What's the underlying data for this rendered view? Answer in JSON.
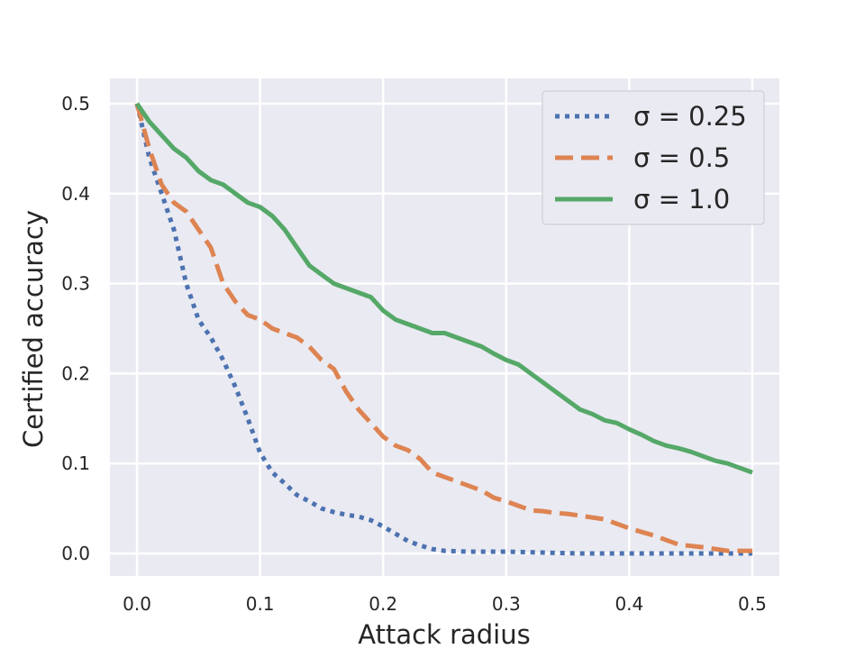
{
  "chart_data": {
    "type": "line",
    "xlabel": "Attack radius",
    "ylabel": "Certified accuracy",
    "xlim": [
      -0.022,
      0.522
    ],
    "ylim": [
      -0.025,
      0.528
    ],
    "xticks": [
      0.0,
      0.1,
      0.2,
      0.3,
      0.4,
      0.5
    ],
    "xtick_labels": [
      "0.0",
      "0.1",
      "0.2",
      "0.3",
      "0.4",
      "0.5"
    ],
    "yticks": [
      0.0,
      0.1,
      0.2,
      0.3,
      0.4,
      0.5
    ],
    "ytick_labels": [
      "0.0",
      "0.1",
      "0.2",
      "0.3",
      "0.4",
      "0.5"
    ],
    "grid": true,
    "legend_position": "top-right",
    "series": [
      {
        "name": "σ = 0.25",
        "color": "#4c72b0",
        "style": "dotted",
        "x": [
          0.0,
          0.01,
          0.02,
          0.03,
          0.04,
          0.05,
          0.06,
          0.07,
          0.08,
          0.09,
          0.1,
          0.11,
          0.12,
          0.13,
          0.14,
          0.15,
          0.16,
          0.17,
          0.18,
          0.19,
          0.2,
          0.21,
          0.22,
          0.23,
          0.24,
          0.25,
          0.27,
          0.3,
          0.33,
          0.36,
          0.4,
          0.45,
          0.5
        ],
        "y": [
          0.5,
          0.44,
          0.4,
          0.36,
          0.3,
          0.26,
          0.24,
          0.215,
          0.185,
          0.15,
          0.112,
          0.09,
          0.078,
          0.065,
          0.058,
          0.05,
          0.046,
          0.043,
          0.041,
          0.037,
          0.03,
          0.022,
          0.014,
          0.009,
          0.005,
          0.003,
          0.002,
          0.002,
          0.001,
          0.0,
          0.0,
          0.0,
          0.0
        ]
      },
      {
        "name": "σ = 0.5",
        "color": "#dd8452",
        "style": "dashed",
        "x": [
          0.0,
          0.01,
          0.02,
          0.03,
          0.04,
          0.05,
          0.06,
          0.07,
          0.08,
          0.09,
          0.1,
          0.11,
          0.12,
          0.13,
          0.14,
          0.15,
          0.16,
          0.17,
          0.18,
          0.19,
          0.2,
          0.21,
          0.22,
          0.23,
          0.24,
          0.25,
          0.26,
          0.27,
          0.28,
          0.29,
          0.3,
          0.31,
          0.32,
          0.33,
          0.34,
          0.35,
          0.36,
          0.37,
          0.38,
          0.39,
          0.4,
          0.42,
          0.44,
          0.46,
          0.48,
          0.5
        ],
        "y": [
          0.5,
          0.45,
          0.41,
          0.39,
          0.38,
          0.36,
          0.34,
          0.3,
          0.28,
          0.265,
          0.26,
          0.25,
          0.245,
          0.24,
          0.23,
          0.215,
          0.205,
          0.18,
          0.16,
          0.145,
          0.13,
          0.12,
          0.115,
          0.105,
          0.09,
          0.085,
          0.08,
          0.075,
          0.07,
          0.062,
          0.058,
          0.053,
          0.048,
          0.047,
          0.045,
          0.044,
          0.042,
          0.04,
          0.038,
          0.033,
          0.028,
          0.02,
          0.01,
          0.007,
          0.003,
          0.003
        ]
      },
      {
        "name": "σ = 1.0",
        "color": "#55a868",
        "style": "solid",
        "x": [
          0.0,
          0.01,
          0.02,
          0.03,
          0.04,
          0.05,
          0.06,
          0.07,
          0.08,
          0.09,
          0.1,
          0.11,
          0.12,
          0.13,
          0.14,
          0.15,
          0.16,
          0.17,
          0.18,
          0.19,
          0.2,
          0.21,
          0.22,
          0.23,
          0.24,
          0.25,
          0.26,
          0.27,
          0.28,
          0.29,
          0.3,
          0.31,
          0.32,
          0.33,
          0.34,
          0.35,
          0.36,
          0.37,
          0.38,
          0.39,
          0.4,
          0.41,
          0.42,
          0.43,
          0.44,
          0.45,
          0.46,
          0.47,
          0.48,
          0.49,
          0.5
        ],
        "y": [
          0.5,
          0.48,
          0.465,
          0.45,
          0.44,
          0.425,
          0.415,
          0.41,
          0.4,
          0.39,
          0.385,
          0.375,
          0.36,
          0.34,
          0.32,
          0.31,
          0.3,
          0.295,
          0.29,
          0.285,
          0.27,
          0.26,
          0.255,
          0.25,
          0.245,
          0.245,
          0.24,
          0.235,
          0.23,
          0.222,
          0.215,
          0.21,
          0.2,
          0.19,
          0.18,
          0.17,
          0.16,
          0.155,
          0.148,
          0.145,
          0.138,
          0.132,
          0.125,
          0.12,
          0.117,
          0.113,
          0.108,
          0.103,
          0.1,
          0.095,
          0.09
        ]
      }
    ]
  }
}
